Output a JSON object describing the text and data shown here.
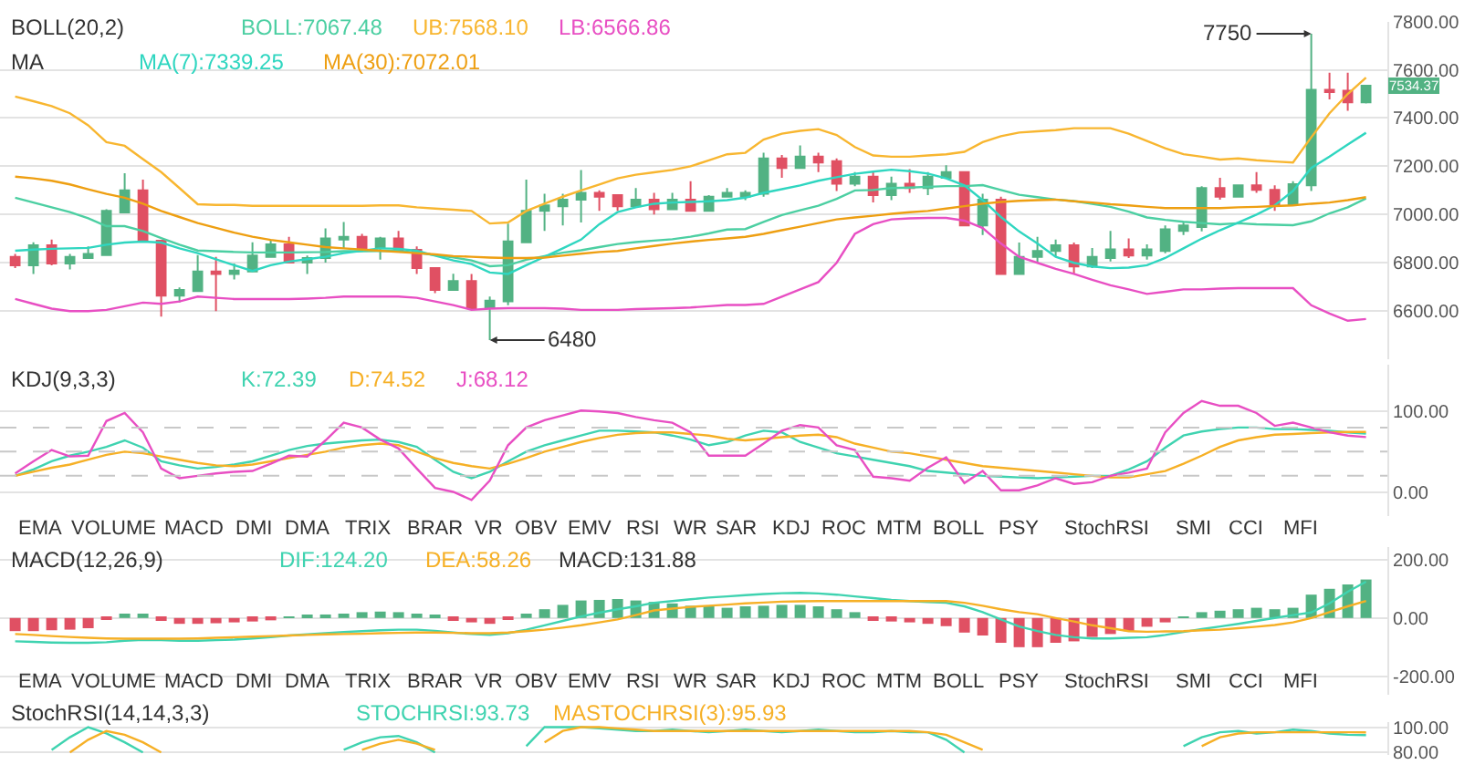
{
  "chart_data": [
    {
      "type": "candlestick",
      "title": "BOLL(20,2)",
      "subtitle": "MA",
      "categories": [
        null,
        null,
        null,
        null,
        null,
        null,
        null,
        null,
        null,
        null,
        null,
        null,
        null,
        null,
        null,
        null,
        null,
        null,
        null,
        null,
        null,
        null,
        null,
        null,
        null,
        null,
        null,
        null,
        null,
        null,
        null,
        null,
        null,
        null,
        null,
        null,
        null,
        null,
        null,
        null,
        null,
        null,
        null,
        null,
        null,
        null,
        null,
        null,
        null,
        null,
        null,
        null,
        null,
        null,
        null,
        null,
        null,
        null,
        null,
        null,
        null,
        null,
        null,
        null,
        null,
        null,
        null,
        null,
        null,
        null,
        null,
        null,
        null,
        null,
        null
      ],
      "ohlc": [
        [
          6825,
          6837,
          6778,
          6790
        ],
        [
          6790,
          6885,
          6754,
          6873
        ],
        [
          6873,
          6896,
          6790,
          6797
        ],
        [
          6797,
          6837,
          6773,
          6825
        ],
        [
          6820,
          6868,
          6818,
          6837
        ],
        [
          6832,
          7022,
          6832,
          7015
        ],
        [
          7009,
          7171,
          7009,
          7100
        ],
        [
          7100,
          7145,
          6885,
          6892
        ],
        [
          6892,
          6892,
          6577,
          6664
        ],
        [
          6664,
          6698,
          6636,
          6688
        ],
        [
          6683,
          6832,
          6683,
          6764
        ],
        [
          6764,
          6825,
          6600,
          6754
        ],
        [
          6754,
          6797,
          6731,
          6768
        ],
        [
          6764,
          6885,
          6764,
          6830
        ],
        [
          6825,
          6896,
          6825,
          6877
        ],
        [
          6877,
          6908,
          6801,
          6801
        ],
        [
          6801,
          6830,
          6754,
          6820
        ],
        [
          6820,
          6943,
          6801,
          6901
        ],
        [
          6896,
          6969,
          6861,
          6908
        ],
        [
          6908,
          6920,
          6861,
          6861
        ],
        [
          6861,
          6908,
          6813,
          6901
        ],
        [
          6901,
          6932,
          6854,
          6854
        ],
        [
          6854,
          6868,
          6754,
          6778
        ],
        [
          6778,
          6778,
          6674,
          6688
        ],
        [
          6688,
          6755,
          6688,
          6724
        ],
        [
          6724,
          6754,
          6612,
          6612
        ],
        [
          6612,
          6660,
          6480,
          6643
        ],
        [
          6640,
          6963,
          6624,
          6889
        ],
        [
          6885,
          7145,
          6885,
          7015
        ],
        [
          7015,
          7086,
          6932,
          7038
        ],
        [
          7034,
          7086,
          6955,
          7062
        ],
        [
          7062,
          7185,
          6967,
          7090
        ],
        [
          7090,
          7100,
          7015,
          7074
        ],
        [
          7081,
          7081,
          7015,
          7034
        ],
        [
          7034,
          7110,
          7034,
          7062
        ],
        [
          7062,
          7090,
          7000,
          7022
        ],
        [
          7022,
          7090,
          7022,
          7062
        ],
        [
          7062,
          7138,
          7015,
          7015
        ],
        [
          7015,
          7081,
          7015,
          7074
        ],
        [
          7074,
          7110,
          7074,
          7090
        ],
        [
          7074,
          7100,
          7060,
          7090
        ],
        [
          7086,
          7256,
          7074,
          7233
        ],
        [
          7233,
          7247,
          7152,
          7193
        ],
        [
          7193,
          7287,
          7190,
          7240
        ],
        [
          7240,
          7256,
          7176,
          7216
        ],
        [
          7221,
          7233,
          7098,
          7128
        ],
        [
          7128,
          7176,
          7117,
          7157
        ],
        [
          7157,
          7176,
          7050,
          7081
        ],
        [
          7081,
          7157,
          7060,
          7128
        ],
        [
          7128,
          7188,
          7090,
          7110
        ],
        [
          7110,
          7176,
          7081,
          7157
        ],
        [
          7152,
          7204,
          7150,
          7176
        ],
        [
          7176,
          7180,
          6955,
          6955
        ],
        [
          6955,
          7086,
          6915,
          7062
        ],
        [
          7062,
          7074,
          6754,
          6754
        ],
        [
          6754,
          6884,
          6750,
          6825
        ],
        [
          6825,
          6908,
          6801,
          6849
        ],
        [
          6849,
          6896,
          6825,
          6873
        ],
        [
          6873,
          6884,
          6754,
          6785
        ],
        [
          6785,
          6861,
          6778,
          6825
        ],
        [
          6820,
          6932,
          6806,
          6856
        ],
        [
          6856,
          6901,
          6820,
          6830
        ],
        [
          6830,
          6877,
          6813,
          6856
        ],
        [
          6849,
          6955,
          6840,
          6939
        ],
        [
          6932,
          6967,
          6915,
          6955
        ],
        [
          6948,
          7117,
          6930,
          7110
        ],
        [
          7110,
          7152,
          7062,
          7074
        ],
        [
          7074,
          7121,
          7074,
          7121
        ],
        [
          7121,
          7176,
          7090,
          7102
        ],
        [
          7102,
          7121,
          7015,
          7043
        ],
        [
          7043,
          7138,
          7038,
          7126
        ],
        [
          7121,
          7750,
          7098,
          7517
        ],
        [
          7517,
          7588,
          7477,
          7508
        ],
        [
          7513,
          7588,
          7430,
          7465
        ],
        [
          7465,
          7534.37,
          7460,
          7534.37
        ]
      ],
      "series": [
        {
          "name": "BOLL:7067.48",
          "type": "line",
          "color": "#4ccfa2",
          "values": [
            7070,
            7050,
            7030,
            7010,
            6985,
            6952,
            6952,
            6932,
            6903,
            6875,
            6851,
            6848,
            6845,
            6843,
            6843,
            6843,
            6844,
            6845,
            6848,
            6848,
            6849,
            6849,
            6842,
            6832,
            6822,
            6810,
            6786,
            6790,
            6813,
            6828,
            6842,
            6852,
            6865,
            6878,
            6886,
            6892,
            6898,
            6908,
            6922,
            6938,
            6940,
            6970,
            6998,
            7018,
            7037,
            7065,
            7100,
            7102,
            7110,
            7112,
            7115,
            7118,
            7118,
            7122,
            7102,
            7082,
            7072,
            7062,
            7056,
            7044,
            7032,
            7012,
            6988,
            6978,
            6970,
            6965,
            6960,
            6964,
            6960,
            6958,
            6956,
            6972,
            7005,
            7030,
            7067
          ]
        },
        {
          "name": "UB:7568.10",
          "type": "line",
          "color": "#f8b630",
          "values": [
            7489,
            7470,
            7450,
            7420,
            7370,
            7300,
            7285,
            7230,
            7176,
            7110,
            7043,
            7040,
            7040,
            7036,
            7036,
            7036,
            7036,
            7036,
            7036,
            7036,
            7038,
            7038,
            7030,
            7025,
            7020,
            7015,
            6963,
            6967,
            7015,
            7045,
            7074,
            7100,
            7125,
            7150,
            7165,
            7175,
            7185,
            7200,
            7225,
            7250,
            7256,
            7311,
            7335,
            7347,
            7354,
            7330,
            7280,
            7245,
            7240,
            7240,
            7245,
            7250,
            7260,
            7300,
            7325,
            7340,
            7345,
            7350,
            7358,
            7358,
            7358,
            7335,
            7305,
            7275,
            7250,
            7240,
            7228,
            7233,
            7225,
            7220,
            7216,
            7320,
            7420,
            7500,
            7568
          ]
        },
        {
          "name": "LB:6566.86",
          "type": "line",
          "color": "#e84fc3",
          "values": [
            6650,
            6630,
            6610,
            6600,
            6600,
            6605,
            6620,
            6635,
            6630,
            6640,
            6660,
            6655,
            6650,
            6650,
            6650,
            6650,
            6652,
            6655,
            6660,
            6660,
            6660,
            6660,
            6655,
            6640,
            6625,
            6605,
            6610,
            6612,
            6612,
            6612,
            6610,
            6605,
            6605,
            6605,
            6608,
            6610,
            6612,
            6615,
            6620,
            6625,
            6625,
            6630,
            6660,
            6690,
            6720,
            6800,
            6920,
            6960,
            6980,
            6984,
            6986,
            6986,
            6975,
            6944,
            6880,
            6825,
            6800,
            6775,
            6754,
            6730,
            6707,
            6690,
            6671,
            6680,
            6690,
            6690,
            6693,
            6695,
            6695,
            6695,
            6695,
            6624,
            6590,
            6560,
            6567
          ]
        },
        {
          "name": "MA(7):7339.25",
          "type": "line",
          "color": "#2fd6c0",
          "values": [
            6850,
            6855,
            6858,
            6860,
            6862,
            6875,
            6884,
            6888,
            6884,
            6860,
            6840,
            6815,
            6790,
            6766,
            6790,
            6805,
            6815,
            6825,
            6840,
            6850,
            6860,
            6858,
            6850,
            6830,
            6810,
            6795,
            6760,
            6754,
            6790,
            6825,
            6860,
            6896,
            6960,
            7010,
            7030,
            7045,
            7050,
            7052,
            7055,
            7060,
            7070,
            7090,
            7105,
            7121,
            7140,
            7155,
            7169,
            7178,
            7186,
            7180,
            7170,
            7150,
            7121,
            7060,
            6990,
            6930,
            6880,
            6825,
            6800,
            6785,
            6778,
            6780,
            6790,
            6820,
            6860,
            6900,
            6935,
            6967,
            7000,
            7038,
            7098,
            7193,
            7240,
            7290,
            7339
          ]
        },
        {
          "name": "MA(30):7072.01",
          "type": "line",
          "color": "#ee9f12",
          "values": [
            7157,
            7150,
            7140,
            7125,
            7105,
            7086,
            7070,
            7045,
            7015,
            6990,
            6965,
            6945,
            6925,
            6908,
            6895,
            6885,
            6875,
            6865,
            6860,
            6855,
            6850,
            6845,
            6840,
            6835,
            6828,
            6825,
            6822,
            6820,
            6820,
            6822,
            6830,
            6838,
            6845,
            6849,
            6860,
            6870,
            6880,
            6888,
            6895,
            6901,
            6908,
            6920,
            6935,
            6950,
            6965,
            6980,
            6988,
            6995,
            7003,
            7010,
            7015,
            7025,
            7035,
            7045,
            7052,
            7057,
            7060,
            7062,
            7055,
            7050,
            7043,
            7038,
            7032,
            7027,
            7027,
            7027,
            7027,
            7030,
            7032,
            7035,
            7038,
            7045,
            7050,
            7060,
            7072
          ]
        }
      ],
      "ylim": [
        6400,
        7800
      ],
      "yticks": [
        {
          "value": 6600,
          "label": "6600.00"
        },
        {
          "value": 6800,
          "label": "6800.00"
        },
        {
          "value": 7000,
          "label": "7000.00"
        },
        {
          "value": 7200,
          "label": "7200.00"
        },
        {
          "value": 7400,
          "label": "7400.00"
        },
        {
          "value": 7600,
          "label": "7600.00"
        },
        {
          "value": 7800,
          "label": "7800.00"
        }
      ],
      "grid": "y",
      "legend": false,
      "annotations": [
        "7750",
        "6480",
        "7534.37"
      ]
    },
    {
      "type": "line",
      "title": "KDJ(9,3,3)",
      "categories": [
        null,
        null,
        null,
        null,
        null,
        null,
        null,
        null,
        null,
        null,
        null,
        null,
        null,
        null,
        null,
        null,
        null,
        null,
        null,
        null,
        null,
        null,
        null,
        null,
        null,
        null,
        null,
        null,
        null,
        null,
        null,
        null,
        null,
        null,
        null,
        null,
        null,
        null,
        null,
        null,
        null,
        null,
        null,
        null,
        null,
        null,
        null,
        null,
        null,
        null,
        null,
        null,
        null,
        null,
        null,
        null,
        null,
        null,
        null,
        null,
        null,
        null,
        null,
        null,
        null,
        null,
        null,
        null,
        null,
        null,
        null,
        null,
        null,
        null,
        null
      ],
      "series": [
        {
          "name": "K:72.39",
          "color": "#3fd3b0",
          "values": [
            20,
            28,
            38,
            45,
            50,
            56,
            64,
            55,
            38,
            33,
            29,
            31,
            34,
            38,
            45,
            52,
            57,
            60,
            62,
            64,
            65,
            62,
            56,
            40,
            25,
            17,
            25,
            38,
            50,
            58,
            64,
            70,
            76,
            76,
            75,
            74,
            70,
            65,
            58,
            62,
            70,
            76,
            74,
            62,
            55,
            48,
            44,
            40,
            36,
            32,
            26,
            24,
            22,
            20,
            19,
            18,
            17,
            18,
            19,
            20,
            20,
            28,
            38,
            55,
            70,
            75,
            78,
            80,
            80,
            78,
            78,
            77,
            76,
            74,
            72.39
          ]
        },
        {
          "name": "D:74.52",
          "color": "#f6b026",
          "values": [
            20,
            25,
            30,
            34,
            40,
            46,
            50,
            48,
            44,
            40,
            36,
            33,
            32,
            34,
            38,
            42,
            46,
            50,
            55,
            58,
            60,
            58,
            50,
            42,
            36,
            32,
            29,
            35,
            42,
            50,
            56,
            62,
            67,
            71,
            73,
            74,
            74,
            72,
            70,
            66,
            64,
            66,
            68,
            70,
            71,
            68,
            60,
            55,
            50,
            48,
            44,
            40,
            36,
            32,
            30,
            28,
            26,
            24,
            22,
            20,
            18,
            18,
            22,
            26,
            35,
            45,
            56,
            64,
            68,
            71,
            72,
            73,
            74,
            74.5,
            74.52
          ]
        },
        {
          "name": "J:68.12",
          "color": "#e84fc3",
          "values": [
            23,
            38,
            52,
            44,
            45,
            88,
            98,
            74,
            29,
            17,
            20,
            23,
            25,
            26,
            35,
            45,
            44,
            64,
            86,
            80,
            65,
            54,
            29,
            5,
            0,
            -10,
            14,
            58,
            80,
            89,
            95,
            101,
            100,
            98,
            93,
            89,
            86,
            74,
            45,
            45,
            45,
            60,
            76,
            83,
            80,
            58,
            52,
            19,
            17,
            14,
            30,
            43,
            11,
            26,
            2,
            2,
            8,
            17,
            10,
            12,
            20,
            24,
            29,
            74,
            98,
            113,
            107,
            107,
            98,
            82,
            86,
            80,
            74,
            70,
            68.12
          ]
        }
      ],
      "ylim": [
        -30,
        158
      ],
      "yticks": [
        {
          "value": 0,
          "label": "0.00"
        },
        {
          "value": 100,
          "label": "100.00"
        }
      ],
      "ref_lines": [
        {
          "axis": "y",
          "value": 80,
          "color": "#c8c8c8",
          "line_style": "dashed"
        },
        {
          "axis": "y",
          "value": 50,
          "color": "#c8c8c8",
          "line_style": "dashed"
        },
        {
          "axis": "y",
          "value": 20,
          "color": "#c8c8c8",
          "line_style": "dashed"
        }
      ],
      "grid": "y",
      "legend": false,
      "annotations": [
        "EMA",
        "VOLUME",
        "MACD",
        "DMI",
        "DMA",
        "TRIX",
        "BRAR",
        "VR",
        "OBV",
        "EMV",
        "RSI",
        "WR",
        "SAR",
        "KDJ",
        "ROC",
        "MTM",
        "BOLL",
        "PSY",
        "StochRSI",
        "SMI",
        "CCI",
        "MFI"
      ]
    },
    {
      "type": "bar",
      "title": "MACD(12,26,9)",
      "categories": [
        null,
        null,
        null,
        null,
        null,
        null,
        null,
        null,
        null,
        null,
        null,
        null,
        null,
        null,
        null,
        null,
        null,
        null,
        null,
        null,
        null,
        null,
        null,
        null,
        null,
        null,
        null,
        null,
        null,
        null,
        null,
        null,
        null,
        null,
        null,
        null,
        null,
        null,
        null,
        null,
        null,
        null,
        null,
        null,
        null,
        null,
        null,
        null,
        null,
        null,
        null,
        null,
        null,
        null,
        null,
        null,
        null,
        null,
        null,
        null,
        null,
        null,
        null,
        null,
        null,
        null,
        null,
        null,
        null,
        null,
        null,
        null,
        null,
        null,
        null
      ],
      "series": [
        {
          "name": "DIF:124.20",
          "type": "line",
          "color": "#3fd3b0",
          "values": [
            -80,
            -82,
            -84,
            -85,
            -85,
            -83,
            -78,
            -75,
            -76,
            -78,
            -78,
            -76,
            -74,
            -70,
            -66,
            -60,
            -56,
            -52,
            -48,
            -45,
            -42,
            -40,
            -40,
            -44,
            -50,
            -55,
            -58,
            -52,
            -40,
            -25,
            -10,
            5,
            18,
            30,
            40,
            52,
            58,
            64,
            70,
            74,
            78,
            82,
            85,
            86,
            84,
            80,
            74,
            68,
            62,
            58,
            55,
            52,
            40,
            20,
            -5,
            -29,
            -45,
            -58,
            -66,
            -70,
            -70,
            -68,
            -66,
            -58,
            -48,
            -38,
            -29,
            -20,
            -10,
            0,
            10,
            19,
            50,
            90,
            124.2
          ]
        },
        {
          "name": "DEA:58.26",
          "type": "line",
          "color": "#f6b026",
          "values": [
            -55,
            -58,
            -62,
            -65,
            -68,
            -70,
            -71,
            -71,
            -71,
            -71,
            -70,
            -68,
            -66,
            -64,
            -62,
            -60,
            -58,
            -56,
            -55,
            -54,
            -52,
            -51,
            -50,
            -50,
            -51,
            -52,
            -52,
            -50,
            -45,
            -40,
            -33,
            -25,
            -15,
            -5,
            10,
            26,
            32,
            38,
            42,
            46,
            50,
            53,
            56,
            57,
            58,
            58,
            58,
            58,
            58,
            58,
            58,
            58,
            52,
            42,
            30,
            20,
            13,
            0,
            -12,
            -25,
            -35,
            -45,
            -47,
            -46,
            -45,
            -42,
            -40,
            -35,
            -30,
            -24,
            -15,
            0,
            20,
            40,
            58.26
          ]
        },
        {
          "name": "MACD:131.88",
          "type": "bar",
          "values": [
            -45,
            -45,
            -42,
            -40,
            -35,
            -5,
            15,
            15,
            -10,
            -20,
            -20,
            -18,
            -15,
            -12,
            -8,
            5,
            10,
            12,
            15,
            20,
            22,
            20,
            15,
            8,
            -10,
            -15,
            -20,
            -5,
            15,
            30,
            45,
            60,
            62,
            65,
            60,
            55,
            50,
            42,
            40,
            35,
            40,
            42,
            45,
            45,
            40,
            30,
            20,
            -10,
            -12,
            -15,
            -20,
            -28,
            -50,
            -60,
            -85,
            -100,
            -100,
            -85,
            -80,
            -65,
            -55,
            -45,
            -30,
            -15,
            5,
            20,
            25,
            30,
            35,
            30,
            35,
            80,
            100,
            115,
            131.88
          ],
          "colors": [
            "#e05063",
            "#e05063",
            "#e05063",
            "#e05063",
            "#e05063",
            "#e05063",
            "#52b283",
            "#52b283",
            "#e05063",
            "#e05063",
            "#e05063",
            "#e05063",
            "#e05063",
            "#e05063",
            "#e05063",
            "#52b283",
            "#52b283",
            "#52b283",
            "#52b283",
            "#52b283",
            "#52b283",
            "#52b283",
            "#52b283",
            "#52b283",
            "#e05063",
            "#e05063",
            "#e05063",
            "#e05063",
            "#52b283",
            "#52b283",
            "#52b283",
            "#52b283",
            "#52b283",
            "#52b283",
            "#52b283",
            "#52b283",
            "#52b283",
            "#52b283",
            "#52b283",
            "#52b283",
            "#52b283",
            "#52b283",
            "#52b283",
            "#52b283",
            "#52b283",
            "#52b283",
            "#52b283",
            "#e05063",
            "#e05063",
            "#e05063",
            "#e05063",
            "#e05063",
            "#e05063",
            "#e05063",
            "#e05063",
            "#e05063",
            "#e05063",
            "#e05063",
            "#e05063",
            "#e05063",
            "#e05063",
            "#e05063",
            "#e05063",
            "#e05063",
            "#52b283",
            "#52b283",
            "#52b283",
            "#52b283",
            "#52b283",
            "#52b283",
            "#52b283",
            "#52b283",
            "#52b283",
            "#52b283",
            "#52b283"
          ]
        }
      ],
      "ylim": [
        -263,
        243
      ],
      "yticks": [
        {
          "value": -200,
          "label": "-200.00"
        },
        {
          "value": 0,
          "label": "0.00"
        },
        {
          "value": 200,
          "label": "200.00"
        }
      ],
      "grid": "y",
      "legend": false,
      "annotations": [
        "EMA",
        "VOLUME",
        "MACD",
        "DMI",
        "DMA",
        "TRIX",
        "BRAR",
        "VR",
        "OBV",
        "EMV",
        "RSI",
        "WR",
        "SAR",
        "KDJ",
        "ROC",
        "MTM",
        "BOLL",
        "PSY",
        "StochRSI",
        "SMI",
        "CCI",
        "MFI"
      ]
    },
    {
      "type": "line",
      "title": "StochRSI(14,14,3,3)",
      "categories": [
        null,
        null,
        null,
        null,
        null,
        null,
        null,
        null,
        null,
        null,
        null,
        null,
        null,
        null,
        null,
        null,
        null,
        null,
        null,
        null,
        null,
        null,
        null,
        null,
        null,
        null,
        null,
        null,
        null,
        null,
        null,
        null,
        null,
        null,
        null,
        null,
        null,
        null,
        null,
        null,
        null,
        null,
        null,
        null,
        null,
        null,
        null,
        null,
        null,
        null,
        null,
        null,
        null,
        null,
        null,
        null,
        null,
        null,
        null,
        null,
        null,
        null,
        null,
        null,
        null,
        null,
        null,
        null,
        null,
        null,
        null,
        null,
        null,
        null,
        null
      ],
      "series": [
        {
          "name": "STOCHRSI:93.73",
          "color": "#3fd3b0",
          "values": [
            null,
            null,
            82,
            92,
            100,
            95,
            88,
            80,
            null,
            null,
            null,
            null,
            null,
            null,
            null,
            null,
            null,
            null,
            82,
            88,
            92,
            93,
            88,
            80,
            null,
            null,
            null,
            null,
            85,
            100,
            100,
            100,
            99,
            98,
            97,
            97,
            98,
            97,
            96,
            97,
            98,
            97,
            96,
            97,
            98,
            97,
            96,
            96,
            97,
            96,
            96,
            90,
            80,
            null,
            null,
            null,
            null,
            null,
            null,
            null,
            null,
            null,
            null,
            null,
            85,
            92,
            96,
            97,
            95,
            96,
            98,
            97,
            95,
            94,
            93.73
          ]
        },
        {
          "name": "MASTOCHRSI(3):95.93",
          "color": "#f6b026",
          "values": [
            null,
            null,
            null,
            80,
            90,
            97,
            94,
            88,
            80,
            null,
            null,
            null,
            null,
            null,
            null,
            null,
            null,
            null,
            null,
            82,
            87,
            90,
            87,
            82,
            null,
            null,
            null,
            null,
            null,
            88,
            97,
            100,
            100,
            99,
            98,
            97,
            97,
            97,
            97,
            97,
            97,
            97,
            97,
            97,
            97,
            97,
            97,
            97,
            97,
            97,
            96,
            94,
            88,
            82,
            null,
            null,
            null,
            null,
            null,
            null,
            null,
            null,
            null,
            null,
            null,
            85,
            92,
            95,
            96,
            96,
            96,
            96,
            96,
            96,
            95.93
          ]
        }
      ],
      "ylim": [
        78,
        104
      ],
      "yticks": [
        {
          "value": 80,
          "label": "80.00"
        },
        {
          "value": 100,
          "label": "100.00"
        }
      ],
      "grid": "y",
      "legend": false
    }
  ]
}
